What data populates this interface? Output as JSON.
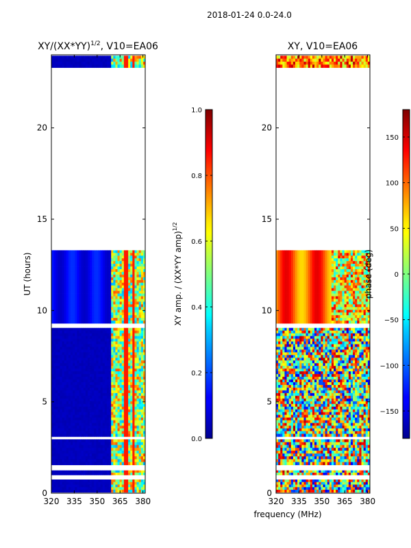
{
  "figure_title": "2018-01-24 0.0-24.0",
  "xlabel": "frequency (MHz)",
  "colors": {
    "axis": "#000000",
    "background": "#ffffff",
    "low": "#00008f",
    "mid": "#7fff7f",
    "high": "#7f0000"
  },
  "chart_data": [
    {
      "type": "heatmap",
      "title": "XY/(XX*YY)^1/2, V10=EA06",
      "title_main": "XY/(XX*YY)",
      "title_sup": "1/2",
      "title_tail": ", V10=EA06",
      "xlabel": "",
      "ylabel": "UT (hours)",
      "x_range": [
        320,
        381.5
      ],
      "y_range": [
        0,
        24
      ],
      "xticks": [
        320,
        335,
        350,
        365,
        380
      ],
      "yticks": [
        0,
        5,
        10,
        15,
        20
      ],
      "colorbar": {
        "label": "XY amp. / (XX*YY amp)^1/2",
        "label_main": "XY amp. / (XX*YY amp)",
        "label_sup": "1/2",
        "range": [
          0.0,
          1.0
        ],
        "ticks": [
          0.0,
          0.2,
          0.4,
          0.6,
          0.8,
          1.0
        ],
        "tick_labels": [
          "0.0",
          "0.2",
          "0.4",
          "0.6",
          "0.8",
          "1.0"
        ]
      },
      "data_blocks_hours": [
        [
          0.05,
          0.75
        ],
        [
          1.0,
          1.25
        ],
        [
          1.55,
          2.95
        ],
        [
          3.1,
          9.05
        ],
        [
          9.3,
          13.3
        ],
        [
          23.3,
          23.95
        ]
      ],
      "hot_band_mhz": [
        359,
        381.5
      ],
      "description_values": "low amplitude (~0.1) below 359 MHz, high variable amplitude (0.3-0.8) in 359-381 MHz band"
    },
    {
      "type": "heatmap",
      "title": "XY, V10=EA06",
      "xlabel": "",
      "ylabel": "",
      "x_range": [
        320,
        381.5
      ],
      "y_range": [
        0,
        24
      ],
      "xticks": [
        320,
        335,
        350,
        365,
        380
      ],
      "yticks": [
        0,
        5,
        10,
        15,
        20
      ],
      "colorbar": {
        "label": "phase (deg)",
        "range": [
          -180,
          180
        ],
        "ticks": [
          150,
          100,
          50,
          0,
          -50,
          -100,
          -150
        ],
        "tick_labels": [
          "150",
          "100",
          "50",
          "0",
          "−50",
          "−100",
          "−150"
        ]
      },
      "data_blocks_hours": [
        [
          0.05,
          0.75
        ],
        [
          1.0,
          1.25
        ],
        [
          1.55,
          2.95
        ],
        [
          3.1,
          9.05
        ],
        [
          9.3,
          13.3
        ],
        [
          23.3,
          23.95
        ]
      ],
      "description_values": "phase ~100-150 deg with vertical stripes between 9-13 h, noisy phase below 9 h"
    }
  ]
}
